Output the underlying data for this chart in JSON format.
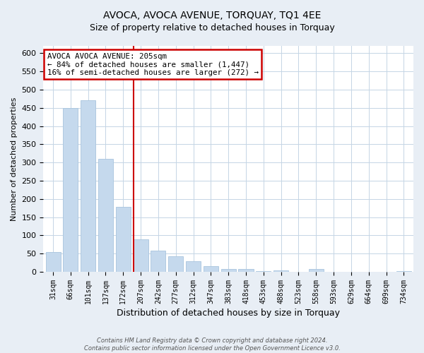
{
  "title": "AVOCA, AVOCA AVENUE, TORQUAY, TQ1 4EE",
  "subtitle": "Size of property relative to detached houses in Torquay",
  "xlabel": "Distribution of detached houses by size in Torquay",
  "ylabel": "Number of detached properties",
  "bar_labels": [
    "31sqm",
    "66sqm",
    "101sqm",
    "137sqm",
    "172sqm",
    "207sqm",
    "242sqm",
    "277sqm",
    "312sqm",
    "347sqm",
    "383sqm",
    "418sqm",
    "453sqm",
    "488sqm",
    "523sqm",
    "558sqm",
    "593sqm",
    "629sqm",
    "664sqm",
    "699sqm",
    "734sqm"
  ],
  "bar_values": [
    55,
    450,
    470,
    310,
    178,
    90,
    58,
    42,
    30,
    15,
    7,
    8,
    2,
    5,
    1,
    8,
    0,
    1,
    0,
    0,
    2
  ],
  "bar_color": "#c5d9ed",
  "bar_edge_color": "#a8c4de",
  "highlight_line_index": 5,
  "annotation_title": "AVOCA AVOCA AVENUE: 205sqm",
  "annotation_line1": "← 84% of detached houses are smaller (1,447)",
  "annotation_line2": "16% of semi-detached houses are larger (272) →",
  "annotation_box_color": "#cc0000",
  "ylim": [
    0,
    620
  ],
  "yticks": [
    0,
    50,
    100,
    150,
    200,
    250,
    300,
    350,
    400,
    450,
    500,
    550,
    600
  ],
  "footer1": "Contains HM Land Registry data © Crown copyright and database right 2024.",
  "footer2": "Contains public sector information licensed under the Open Government Licence v3.0.",
  "bg_color": "#e8eef5",
  "plot_bg_color": "#ffffff",
  "grid_color": "#c5d5e5",
  "title_fontsize": 10,
  "subtitle_fontsize": 9
}
